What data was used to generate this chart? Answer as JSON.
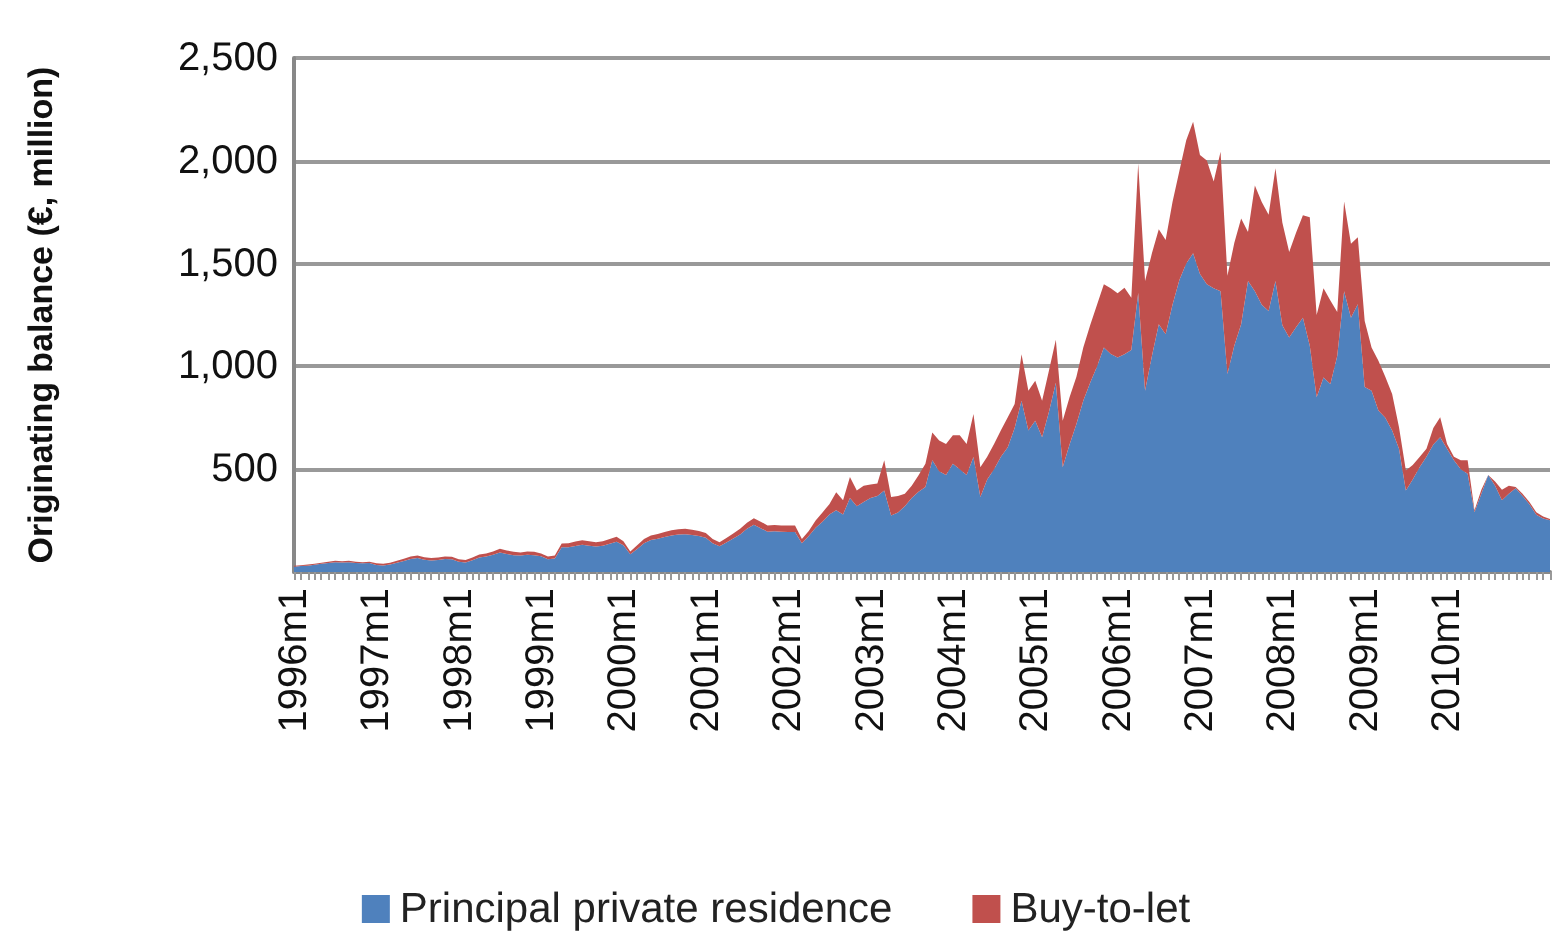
{
  "chart_data": {
    "type": "area",
    "stacked": true,
    "ylabel": "Originating balance (€, million)",
    "categories": [
      "1996m1",
      null,
      null,
      null,
      null,
      null,
      null,
      null,
      null,
      null,
      null,
      null,
      "1997m1",
      null,
      null,
      null,
      null,
      null,
      null,
      null,
      null,
      null,
      null,
      null,
      "1998m1",
      null,
      null,
      null,
      null,
      null,
      null,
      null,
      null,
      null,
      null,
      null,
      "1999m1",
      null,
      null,
      null,
      null,
      null,
      null,
      null,
      null,
      null,
      null,
      null,
      "2000m1",
      null,
      null,
      null,
      null,
      null,
      null,
      null,
      null,
      null,
      null,
      null,
      "2001m1",
      null,
      null,
      null,
      null,
      null,
      null,
      null,
      null,
      null,
      null,
      null,
      "2002m1",
      null,
      null,
      null,
      null,
      null,
      null,
      null,
      null,
      null,
      null,
      null,
      "2003m1",
      null,
      null,
      null,
      null,
      null,
      null,
      null,
      null,
      null,
      null,
      null,
      "2004m1",
      null,
      null,
      null,
      null,
      null,
      null,
      null,
      null,
      null,
      null,
      null,
      "2005m1",
      null,
      null,
      null,
      null,
      null,
      null,
      null,
      null,
      null,
      null,
      null,
      "2006m1",
      null,
      null,
      null,
      null,
      null,
      null,
      null,
      null,
      null,
      null,
      null,
      "2007m1",
      null,
      null,
      null,
      null,
      null,
      null,
      null,
      null,
      null,
      null,
      null,
      "2008m1",
      null,
      null,
      null,
      null,
      null,
      null,
      null,
      null,
      null,
      null,
      null,
      "2009m1",
      null,
      null,
      null,
      null,
      null,
      null,
      null,
      null,
      null,
      null,
      null,
      "2010m1",
      null,
      null,
      null,
      null,
      null,
      null,
      null,
      null,
      null,
      null,
      null,
      null,
      null,
      null,
      null
    ],
    "series": [
      {
        "name": "Principal private residence",
        "color": "#4f81bd",
        "values": [
          26,
          29,
          31,
          35,
          40,
          44,
          48,
          46,
          48,
          44,
          42,
          44,
          34,
          32,
          36,
          45,
          54,
          63,
          68,
          60,
          56,
          58,
          63,
          62,
          50,
          46,
          57,
          70,
          75,
          84,
          95,
          88,
          82,
          80,
          84,
          82,
          76,
          62,
          66,
          120,
          120,
          127,
          133,
          128,
          124,
          128,
          137,
          147,
          130,
          86,
          112,
          140,
          156,
          162,
          170,
          178,
          182,
          184,
          180,
          175,
          166,
          140,
          125,
          143,
          163,
          183,
          210,
          230,
          213,
          196,
          198,
          196,
          195,
          195,
          140,
          175,
          215,
          245,
          280,
          300,
          280,
          360,
          320,
          340,
          360,
          370,
          397,
          275,
          290,
          320,
          360,
          390,
          413,
          543,
          490,
          472,
          527,
          500,
          472,
          559,
          365,
          450,
          500,
          560,
          607,
          700,
          833,
          688,
          736,
          656,
          780,
          921,
          510,
          620,
          720,
          833,
          920,
          1000,
          1092,
          1060,
          1043,
          1059,
          1080,
          1357,
          882,
          1050,
          1205,
          1156,
          1300,
          1420,
          1500,
          1550,
          1450,
          1399,
          1380,
          1366,
          963,
          1100,
          1205,
          1415,
          1366,
          1300,
          1269,
          1415,
          1200,
          1140,
          1190,
          1237,
          1100,
          850,
          946,
          914,
          1050,
          1366,
          1237,
          1302,
          900,
          882,
          785,
          750,
          688,
          600,
          397,
          450,
          510,
          560,
          620,
          656,
          600,
          543,
          500,
          478,
          291,
          380,
          472,
          420,
          349,
          380,
          407,
          370,
          330,
          278,
          260,
          252
        ]
      },
      {
        "name": "Buy-to-let",
        "color": "#c0504d",
        "values": [
          4,
          4,
          5,
          5,
          5,
          6,
          7,
          6,
          7,
          6,
          6,
          6,
          8,
          8,
          9,
          10,
          11,
          12,
          12,
          12,
          12,
          12,
          12,
          12,
          12,
          12,
          13,
          15,
          15,
          16,
          18,
          17,
          16,
          15,
          16,
          16,
          14,
          13,
          14,
          19,
          20,
          21,
          22,
          22,
          21,
          22,
          23,
          24,
          20,
          14,
          18,
          20,
          22,
          23,
          25,
          25,
          26,
          26,
          25,
          25,
          24,
          20,
          20,
          22,
          24,
          27,
          30,
          32,
          32,
          30,
          30,
          30,
          31,
          31,
          20,
          25,
          35,
          45,
          50,
          88,
          69,
          102,
          77,
          80,
          65,
          60,
          146,
          90,
          80,
          61,
          60,
          80,
          113,
          135,
          150,
          151,
          138,
          165,
          151,
          210,
          145,
          110,
          123,
          130,
          146,
          117,
          226,
          194,
          194,
          177,
          200,
          209,
          226,
          230,
          230,
          259,
          280,
          300,
          307,
          320,
          313,
          323,
          254,
          630,
          533,
          500,
          462,
          459,
          500,
          530,
          600,
          640,
          578,
          603,
          519,
          678,
          478,
          500,
          514,
          239,
          514,
          500,
          469,
          549,
          500,
          417,
          460,
          498,
          625,
          400,
          434,
          406,
          214,
          436,
          359,
          326,
          321,
          210,
          242,
          200,
          178,
          104,
          97,
          70,
          49,
          40,
          80,
          97,
          23,
          17,
          43,
          65,
          9,
          20,
          0,
          20,
          51,
          40,
          6,
          10,
          10,
          13,
          10,
          6
        ]
      }
    ],
    "ylim": [
      0,
      2500
    ],
    "yticks": [
      {
        "value": 0,
        "label": null
      },
      500,
      {
        "value": 1000,
        "label": "1,000"
      },
      {
        "value": 1500,
        "label": "1,500"
      },
      {
        "value": 2000,
        "label": "2,000"
      },
      {
        "value": 2500,
        "label": "2,500"
      }
    ],
    "grid": "y",
    "legend": "bottom"
  }
}
